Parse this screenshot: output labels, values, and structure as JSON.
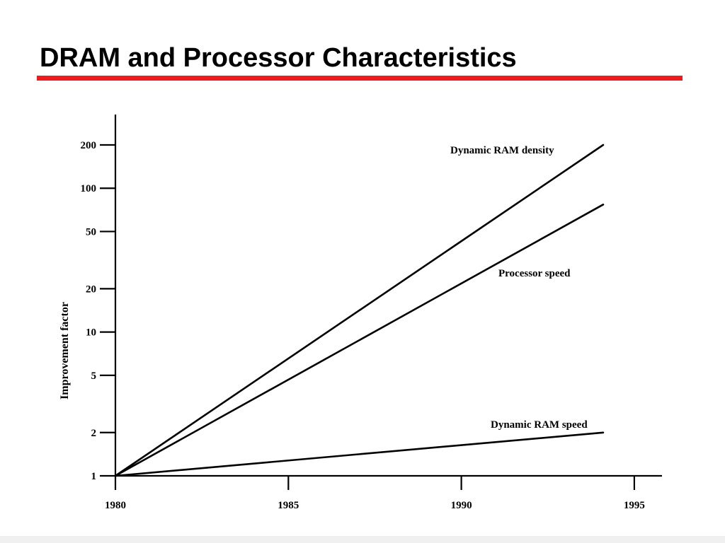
{
  "slide": {
    "title": "DRAM and Processor Characteristics",
    "accent_color": "#ee1c1c"
  },
  "chart_data": {
    "type": "line",
    "title": "",
    "xlabel": "",
    "ylabel": "Improvement factor",
    "y_scale": "log",
    "xlim": [
      1980,
      1995.8
    ],
    "ylim": [
      1,
      200
    ],
    "x_ticks": [
      {
        "value": 1980,
        "label": "1980"
      },
      {
        "value": 1985,
        "label": "1985"
      },
      {
        "value": 1990,
        "label": "1990"
      },
      {
        "value": 1995,
        "label": "1995"
      }
    ],
    "y_ticks": [
      {
        "value": 1,
        "label": "1"
      },
      {
        "value": 2,
        "label": "2"
      },
      {
        "value": 5,
        "label": "5"
      },
      {
        "value": 10,
        "label": "10"
      },
      {
        "value": 20,
        "label": "20"
      },
      {
        "value": 50,
        "label": "50"
      },
      {
        "value": 100,
        "label": "100"
      },
      {
        "value": 200,
        "label": "200"
      }
    ],
    "grid": false,
    "legend": "none",
    "line_color": "#000000",
    "series": [
      {
        "name": "Dynamic RAM density",
        "x": [
          1980,
          1994.1
        ],
        "y": [
          1,
          200
        ]
      },
      {
        "name": "Processor speed",
        "x": [
          1980,
          1994.1
        ],
        "y": [
          1,
          77
        ]
      },
      {
        "name": "Dynamic RAM speed",
        "x": [
          1980,
          1994.1
        ],
        "y": [
          1,
          2
        ]
      }
    ]
  }
}
